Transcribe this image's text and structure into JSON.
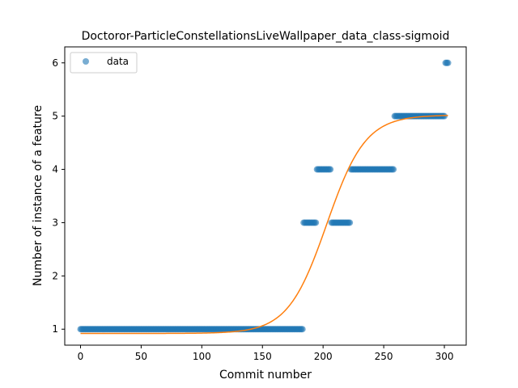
{
  "chart_data": {
    "type": "scatter",
    "title": "Doctoror-ParticleConstellationsLiveWallpaper_data_class-sigmoid",
    "xlabel": "Commit number",
    "ylabel": "Number of instance of a feature",
    "xlim": [
      -13,
      318
    ],
    "ylim": [
      0.7,
      6.3
    ],
    "xticks": [
      0,
      50,
      100,
      150,
      200,
      250,
      300
    ],
    "yticks": [
      1,
      2,
      3,
      4,
      5,
      6
    ],
    "grid": false,
    "legend": {
      "placement": "top-left",
      "entries": [
        "data"
      ]
    },
    "colors": {
      "data": "#1f77b4",
      "fit": "#ff7f0e"
    },
    "series": [
      {
        "name": "data",
        "kind": "scatter",
        "segments": [
          {
            "x_start": 0,
            "x_end": 183,
            "y": 1
          },
          {
            "x_start": 184,
            "x_end": 194,
            "y": 3
          },
          {
            "x_start": 195,
            "x_end": 206,
            "y": 4
          },
          {
            "x_start": 207,
            "x_end": 222,
            "y": 3
          },
          {
            "x_start": 223,
            "x_end": 258,
            "y": 4
          },
          {
            "x_start": 259,
            "x_end": 300,
            "y": 5
          },
          {
            "x_start": 301,
            "x_end": 303,
            "y": 6
          }
        ]
      },
      {
        "kind": "line",
        "model": "sigmoid",
        "params": {
          "base": 0.92,
          "height": 4.1,
          "midpoint": 203,
          "scale": 16
        },
        "x_range": [
          0,
          303
        ]
      }
    ]
  }
}
